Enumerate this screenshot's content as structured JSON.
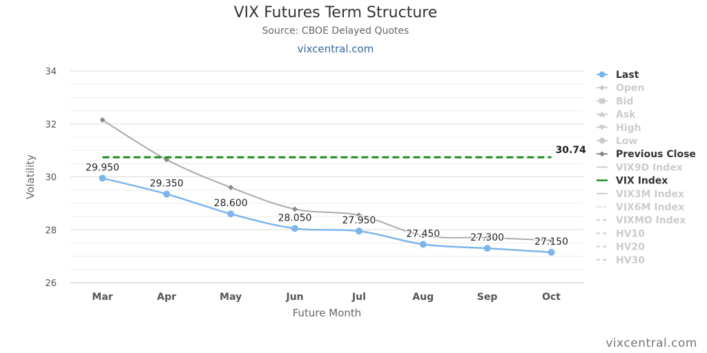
{
  "header": {
    "title": "VIX Futures Term Structure",
    "subtitle": "Source: CBOE Delayed Quotes",
    "site_link": "vixcentral.com"
  },
  "credit": "vixcentral.com",
  "colors": {
    "last": "#7cb5ec",
    "previous_close": "#aaaaaa",
    "vix_index": "#1a8a1a",
    "inactive": "#cccccc",
    "grid": "#e0e0e0",
    "text": "#333333"
  },
  "legend": [
    {
      "label": "Last",
      "active": true,
      "symbol": "circle-line",
      "color": "#7cb5ec"
    },
    {
      "label": "Open",
      "active": false,
      "symbol": "diamond-line"
    },
    {
      "label": "Bid",
      "active": false,
      "symbol": "square-line"
    },
    {
      "label": "Ask",
      "active": false,
      "symbol": "triangle-line"
    },
    {
      "label": "High",
      "active": false,
      "symbol": "triangle-down-line"
    },
    {
      "label": "Low",
      "active": false,
      "symbol": "circle-line"
    },
    {
      "label": "Previous Close",
      "active": true,
      "symbol": "diamond-line",
      "color": "#888888"
    },
    {
      "label": "VIX9D Index",
      "active": false,
      "symbol": "line"
    },
    {
      "label": "VIX Index",
      "active": true,
      "symbol": "dash",
      "color": "#1a8a1a"
    },
    {
      "label": "VIX3M Index",
      "active": false,
      "symbol": "line"
    },
    {
      "label": "VIX6M Index",
      "active": false,
      "symbol": "dot"
    },
    {
      "label": "VIXMO Index",
      "active": false,
      "symbol": "dash"
    },
    {
      "label": "HV10",
      "active": false,
      "symbol": "dash"
    },
    {
      "label": "HV20",
      "active": false,
      "symbol": "dash"
    },
    {
      "label": "HV30",
      "active": false,
      "symbol": "dash"
    }
  ],
  "chart_data": {
    "type": "line",
    "title": "VIX Futures Term Structure",
    "subtitle": "Source: CBOE Delayed Quotes",
    "xlabel": "Future Month",
    "ylabel": "Volatility",
    "categories": [
      "Mar",
      "Apr",
      "May",
      "Jun",
      "Jul",
      "Aug",
      "Sep",
      "Oct"
    ],
    "ylim": [
      26,
      34
    ],
    "yticks": [
      26,
      28,
      30,
      32,
      34
    ],
    "grid": true,
    "legend_position": "right",
    "series": [
      {
        "name": "Last",
        "values": [
          29.95,
          29.35,
          28.6,
          28.05,
          27.95,
          27.45,
          27.3,
          27.15
        ],
        "labels": [
          "29.950",
          "29.350",
          "28.600",
          "28.050",
          "27.950",
          "27.450",
          "27.300",
          "27.150"
        ]
      },
      {
        "name": "Previous Close",
        "values": [
          32.15,
          30.65,
          29.6,
          28.78,
          28.55,
          27.78,
          27.7,
          27.6
        ]
      },
      {
        "name": "VIX Index",
        "values": [
          30.74,
          30.74,
          30.74,
          30.74,
          30.74,
          30.74,
          30.74,
          30.74
        ],
        "end_label": "30.74"
      }
    ]
  }
}
